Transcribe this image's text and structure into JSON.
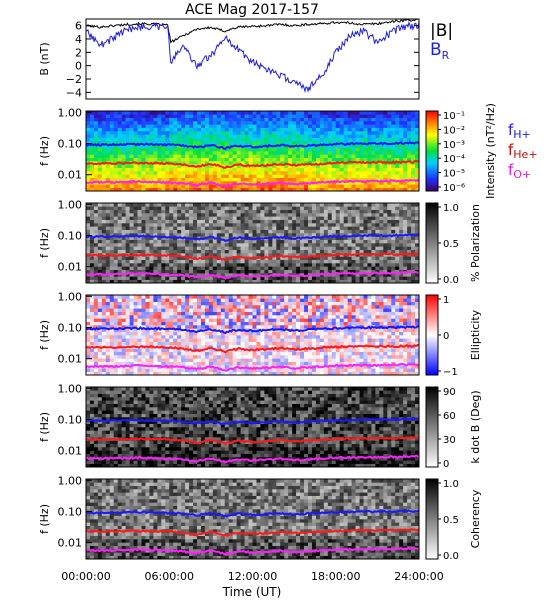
{
  "chart_data": {
    "type": "line",
    "title": "ACE Mag 2017-157",
    "xlabel": "Time (UT)",
    "x_ticks": [
      "00:00:00",
      "06:00:00",
      "12:00:00",
      "18:00:00",
      "24:00:00"
    ],
    "xlim_hours": [
      0,
      24
    ],
    "panels": [
      {
        "kind": "timeseries",
        "ylabel": "B (nT)",
        "ylim": [
          -5,
          7
        ],
        "y_ticks": [
          6,
          4,
          2,
          0,
          -2,
          -4
        ],
        "series": [
          {
            "name": "|B|",
            "color": "#000000",
            "x_hours": [
              0,
              1,
              2,
              3,
              4,
              5,
              5.9,
              6.1,
              7,
              8,
              9,
              10,
              11,
              12,
              13,
              14,
              15,
              16,
              17,
              18,
              19,
              20,
              21,
              22,
              23,
              24
            ],
            "values": [
              6.0,
              5.8,
              6.0,
              6.2,
              6.3,
              6.2,
              6.1,
              3.5,
              4.5,
              5.5,
              5.7,
              5.2,
              5.8,
              5.9,
              6.0,
              6.2,
              6.0,
              6.2,
              6.3,
              6.5,
              6.4,
              6.2,
              6.3,
              6.6,
              6.8,
              6.9
            ]
          },
          {
            "name": "B_R",
            "color": "#1f1fe0",
            "x_hours": [
              0,
              1,
              2,
              3,
              4,
              5,
              5.9,
              6.1,
              7,
              8,
              9,
              10,
              11,
              12,
              13,
              14,
              15,
              16,
              17,
              18,
              19,
              20,
              21,
              22,
              23,
              24
            ],
            "values": [
              5.5,
              3.0,
              4.2,
              5.5,
              5.8,
              5.9,
              5.8,
              0.5,
              3.0,
              0.0,
              1.5,
              4.2,
              2.5,
              0.5,
              -0.5,
              -1.5,
              -2.5,
              -3.5,
              -1.5,
              2.0,
              4.5,
              5.2,
              3.5,
              5.0,
              5.9,
              6.1
            ]
          }
        ]
      },
      {
        "kind": "spectrogram",
        "ylabel": "f (Hz)",
        "y_ticks": [
          "1.00",
          "0.10",
          "0.01"
        ],
        "cbar_label": "Intensity (nT²/Hz)",
        "cbar_ticks": [
          "10⁻¹",
          "10⁻²",
          "10⁻³",
          "10⁻⁴",
          "10⁻⁵",
          "10⁻⁶"
        ],
        "cbar_scale": "rainbow",
        "legend": [
          {
            "label": "f",
            "sub": "H+",
            "color": "#2020e0"
          },
          {
            "label": "f",
            "sub": "He+",
            "color": "#c01010"
          },
          {
            "label": "f",
            "sub": "O+",
            "color": "#e020e0"
          }
        ]
      },
      {
        "kind": "spectrogram",
        "ylabel": "f (Hz)",
        "y_ticks": [
          "1.00",
          "0.10",
          "0.01"
        ],
        "cbar_label": "% Polarization",
        "cbar_ticks": [
          "1.0",
          "0.5",
          "0.0"
        ],
        "cbar_scale": "gray"
      },
      {
        "kind": "spectrogram",
        "ylabel": "f (Hz)",
        "y_ticks": [
          "1.00",
          "0.10",
          "0.01"
        ],
        "cbar_label": "Ellipticity",
        "cbar_ticks": [
          "1",
          "0",
          "−1"
        ],
        "cbar_scale": "bwr"
      },
      {
        "kind": "spectrogram",
        "ylabel": "f (Hz)",
        "y_ticks": [
          "1.00",
          "0.10",
          "0.01"
        ],
        "cbar_label": "k dot B (Deg)",
        "cbar_ticks": [
          "90",
          "60",
          "30",
          "0"
        ],
        "cbar_scale": "gray"
      },
      {
        "kind": "spectrogram",
        "ylabel": "f (Hz)",
        "y_ticks": [
          "1.00",
          "0.10",
          "0.01"
        ],
        "cbar_label": "Coherency",
        "cbar_ticks": [
          "1.0",
          "0.5",
          "0.0"
        ],
        "cbar_scale": "gray"
      }
    ],
    "gyro_lines_hz": {
      "x_hours": [
        0,
        2,
        4,
        6,
        7,
        8,
        9,
        10,
        11,
        12,
        13,
        14,
        15,
        16,
        18,
        20,
        22,
        24
      ],
      "H+": [
        0.09,
        0.092,
        0.095,
        0.09,
        0.085,
        0.075,
        0.088,
        0.07,
        0.085,
        0.078,
        0.082,
        0.088,
        0.08,
        0.085,
        0.095,
        0.098,
        0.1,
        0.105
      ],
      "He+": [
        0.023,
        0.023,
        0.024,
        0.023,
        0.021,
        0.018,
        0.022,
        0.017,
        0.021,
        0.019,
        0.02,
        0.022,
        0.02,
        0.021,
        0.024,
        0.025,
        0.025,
        0.026
      ],
      "O+": [
        0.0056,
        0.0057,
        0.006,
        0.0056,
        0.0053,
        0.0046,
        0.0055,
        0.0043,
        0.0052,
        0.0049,
        0.0051,
        0.0055,
        0.005,
        0.0053,
        0.006,
        0.0061,
        0.0063,
        0.0066
      ]
    }
  }
}
